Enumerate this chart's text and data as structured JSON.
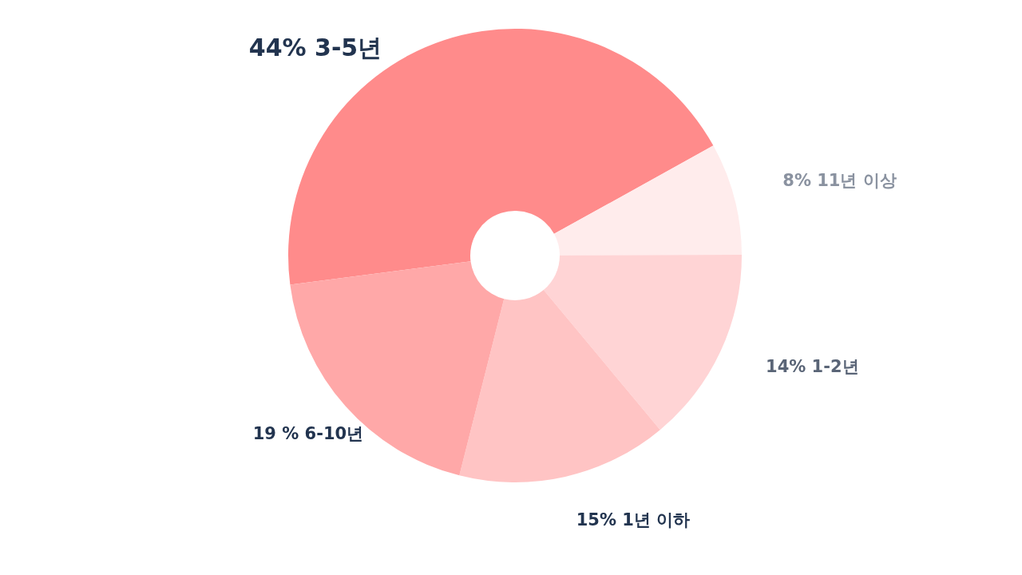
{
  "chart_data": {
    "type": "donut",
    "categories": [
      "3-5년",
      "11년 이상",
      "1-2년",
      "1년 이하",
      "6-10년"
    ],
    "values": [
      44,
      8,
      14,
      15,
      19
    ],
    "colors": [
      "#ff8b8b",
      "#ffecec",
      "#ffd4d5",
      "#ffc4c4",
      "#ffa8a8"
    ],
    "value_labels": [
      "44%",
      "8%",
      "14%",
      "15%",
      "19 %"
    ]
  }
}
